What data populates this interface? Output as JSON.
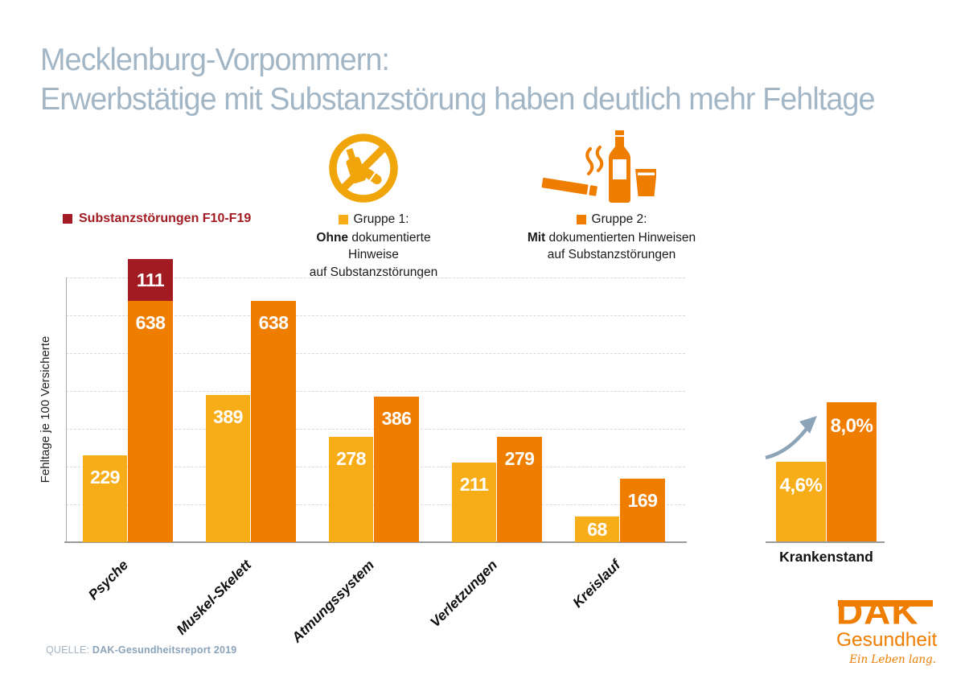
{
  "title": {
    "line1": "Mecklenburg-Vorpommern:",
    "line2": "Erwerbstätige mit Substanzstörung haben deutlich mehr Fehltage"
  },
  "legend": {
    "substance": {
      "label": "Substanzstörungen F10-F19",
      "color": "#A21B22"
    },
    "group1": {
      "title": "Gruppe 1:",
      "line1_bold": "Ohne",
      "line1_rest": " dokumentierte Hinweise",
      "line2": "auf Substanzstörungen",
      "color": "#F7AD18",
      "icon": "prohibition-bottle-pill-icon"
    },
    "group2": {
      "title": "Gruppe 2:",
      "line1_bold": "Mit",
      "line1_rest": " dokumentierten Hinweisen",
      "line2": "auf Substanzstörungen",
      "color": "#EE7D00",
      "icon": "cigarette-bottle-glass-icon"
    }
  },
  "chart_data": {
    "type": "bar",
    "categories": [
      "Psyche",
      "Muskel-Skelett",
      "Atmungssystem",
      "Verletzungen",
      "Kreislauf"
    ],
    "series": [
      {
        "name": "Gruppe 1: Ohne dokumentierte Hinweise auf Substanzstörungen",
        "color": "#F7AD18",
        "values": [
          229,
          389,
          278,
          211,
          68
        ]
      },
      {
        "name": "Gruppe 2: Mit dokumentierten Hinweisen auf Substanzstörungen",
        "color": "#EE7D00",
        "values": [
          638,
          638,
          386,
          279,
          169
        ]
      },
      {
        "name": "Substanzstörungen F10-F19",
        "color": "#A21B22",
        "stacked_on": "Gruppe 2",
        "values": [
          111,
          null,
          null,
          null,
          null
        ]
      }
    ],
    "ylabel": "Fehltage je 100 Versicherte",
    "ylim": [
      0,
      750
    ],
    "gridline_values": [
      100,
      200,
      300,
      400,
      500,
      600,
      700
    ],
    "grid": "horizontal-dashed",
    "legend_position": "top"
  },
  "mini_chart": {
    "type": "bar",
    "title": "Krankenstand",
    "bars": [
      {
        "series": "Gruppe 1",
        "label": "4,6%",
        "value": 4.6,
        "color": "#F7AD18"
      },
      {
        "series": "Gruppe 2",
        "label": "8,0%",
        "value": 8.0,
        "color": "#EE7D00"
      }
    ],
    "annotation": "growth-arrow"
  },
  "source": {
    "prefix": "QUELLE:",
    "text": "DAK-Gesundheitsreport 2019"
  },
  "logo": {
    "brand": "DAK",
    "division": "Gesundheit",
    "tagline": "Ein Leben lang."
  },
  "colors": {
    "title": "#A3B6C5",
    "axis": "#9B9B9B",
    "gridline": "#D8D8D8",
    "arrow": "#8CA3B8",
    "icon_group1": "#F0A50A",
    "logo": "#EE7D00"
  }
}
